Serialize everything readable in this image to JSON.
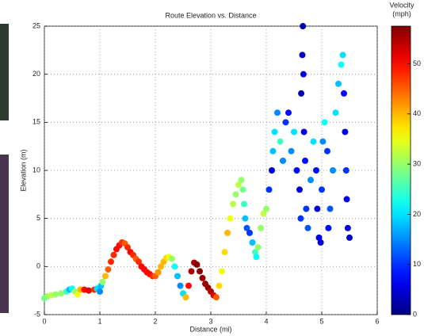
{
  "chart_data": {
    "type": "scatter",
    "title": "Route Elevation vs. Distance",
    "x_label": "Distance (mi)",
    "y_label": "Elevation (m)",
    "colorbar_title": "Velocity",
    "colorbar_unit": "(mph)",
    "colormap": "jet",
    "grid": true,
    "xlim": [
      0,
      6
    ],
    "xticks": [
      0,
      1,
      2,
      3,
      4,
      5,
      6
    ],
    "ylim": [
      -5,
      25
    ],
    "yticks": [
      -5,
      0,
      5,
      10,
      15,
      20,
      25
    ],
    "clim": [
      0,
      57.5
    ],
    "cticks": [
      0,
      10,
      20,
      30,
      40,
      50
    ],
    "x": [
      0.0,
      0.05,
      0.12,
      0.2,
      0.3,
      0.4,
      0.45,
      0.5,
      0.55,
      0.6,
      0.65,
      0.72,
      0.8,
      0.9,
      0.95,
      1.0,
      1.02,
      1.05,
      1.1,
      1.15,
      1.2,
      1.25,
      1.3,
      1.35,
      1.4,
      1.45,
      1.5,
      1.55,
      1.6,
      1.65,
      1.7,
      1.75,
      1.8,
      1.85,
      1.9,
      1.95,
      2.0,
      2.05,
      2.1,
      2.15,
      2.2,
      2.25,
      2.3,
      2.35,
      2.4,
      2.45,
      2.5,
      2.55,
      2.6,
      2.65,
      2.7,
      2.75,
      2.8,
      2.85,
      2.9,
      2.95,
      3.0,
      3.05,
      3.1,
      3.15,
      3.2,
      3.25,
      3.3,
      3.35,
      3.4,
      3.45,
      3.5,
      3.55,
      3.58,
      3.6,
      3.62,
      3.65,
      3.7,
      3.75,
      3.8,
      3.82,
      3.85,
      3.9,
      3.95,
      4.0,
      4.05,
      4.1,
      4.12,
      4.15,
      4.2,
      4.25,
      4.3,
      4.35,
      4.4,
      4.45,
      4.5,
      4.55,
      4.6,
      4.62,
      4.63,
      4.65,
      4.66,
      4.67,
      4.68,
      4.7,
      4.72,
      4.75,
      4.8,
      4.85,
      4.9,
      4.92,
      4.95,
      4.98,
      5.0,
      5.02,
      5.05,
      5.1,
      5.12,
      5.15,
      5.2,
      5.25,
      5.3,
      5.35,
      5.38,
      5.4,
      5.42,
      5.44,
      5.45,
      5.47,
      5.5
    ],
    "y": [
      -3.3,
      -3.1,
      -3.0,
      -2.9,
      -2.8,
      -2.6,
      -2.4,
      -2.3,
      -2.6,
      -2.9,
      -2.4,
      -2.4,
      -2.5,
      -2.4,
      -2.3,
      -2.6,
      -2.0,
      -1.6,
      -1.0,
      -0.3,
      0.5,
      1.2,
      1.8,
      2.2,
      2.5,
      2.4,
      2.0,
      1.5,
      1.2,
      0.8,
      0.5,
      0.0,
      -0.3,
      -0.6,
      -0.8,
      -1.0,
      -1.0,
      -0.6,
      0.0,
      0.5,
      0.9,
      1.0,
      0.8,
      0.0,
      -1.0,
      -2.0,
      -2.8,
      -3.2,
      -2.0,
      -0.5,
      0.4,
      0.2,
      -0.5,
      -1.2,
      -1.8,
      -2.2,
      -2.6,
      -3.0,
      -3.2,
      -2.0,
      -0.5,
      1.5,
      3.5,
      5.0,
      6.5,
      7.5,
      8.5,
      9.0,
      8.0,
      6.5,
      5.0,
      4.0,
      3.5,
      2.5,
      1.5,
      1.0,
      2.0,
      4.0,
      5.5,
      6.0,
      8.0,
      10.0,
      12.0,
      14.0,
      16.0,
      13.0,
      11.0,
      15.0,
      16.0,
      12.0,
      14.0,
      10.0,
      8.0,
      5.0,
      18.0,
      22.0,
      25.0,
      20.0,
      14.0,
      11.0,
      6.0,
      4.0,
      9.0,
      13.0,
      10.0,
      6.0,
      3.0,
      2.5,
      8.0,
      13.0,
      15.0,
      12.0,
      4.0,
      6.0,
      10.0,
      16.0,
      19.0,
      21.0,
      22.0,
      18.0,
      14.0,
      10.0,
      7.0,
      4.0,
      3.0
    ],
    "velocity": [
      28,
      30,
      32,
      30,
      30,
      25,
      18,
      22,
      30,
      35,
      40,
      50,
      52,
      48,
      20,
      15,
      18,
      30,
      40,
      45,
      48,
      48,
      50,
      50,
      48,
      45,
      48,
      50,
      48,
      45,
      48,
      50,
      50,
      50,
      50,
      48,
      45,
      42,
      40,
      40,
      38,
      35,
      30,
      22,
      18,
      15,
      20,
      40,
      50,
      55,
      55,
      57,
      57,
      56,
      56,
      56,
      55,
      52,
      45,
      38,
      35,
      38,
      40,
      35,
      32,
      30,
      32,
      30,
      28,
      25,
      18,
      12,
      10,
      18,
      25,
      22,
      30,
      30,
      32,
      30,
      10,
      5,
      18,
      20,
      15,
      25,
      15,
      10,
      8,
      15,
      20,
      8,
      5,
      10,
      3,
      4,
      3,
      6,
      5,
      8,
      10,
      12,
      15,
      20,
      8,
      5,
      6,
      5,
      10,
      15,
      22,
      10,
      8,
      12,
      15,
      20,
      18,
      22,
      20,
      8,
      5,
      10,
      6,
      5,
      4
    ]
  }
}
